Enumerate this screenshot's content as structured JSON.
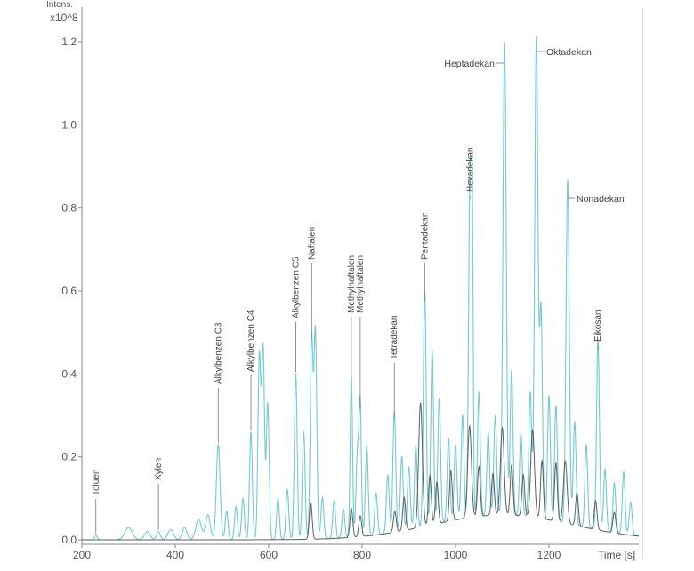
{
  "chart_data": {
    "type": "line",
    "ylabel": "Intens.",
    "yunit": "x10^8",
    "xlabel": "Time [s]",
    "xlim": [
      200,
      1392
    ],
    "ylim": [
      0,
      1.2
    ],
    "xticks": [
      "200",
      "400",
      "600",
      "800",
      "1000",
      "1200"
    ],
    "yticks": [
      "0,0",
      "0,2",
      "0,4",
      "0,6",
      "0,8",
      "1,0",
      "1,2"
    ],
    "grid": false,
    "colors": {
      "series1": "#6cc6d2",
      "series2": "#4a4f52",
      "axis": "#888888"
    },
    "series": [
      {
        "peaks_time_intensity_width": [
          [
            230,
            0.01,
            3
          ],
          [
            300,
            0.03,
            8
          ],
          [
            340,
            0.02,
            6
          ],
          [
            364,
            0.02,
            4
          ],
          [
            390,
            0.025,
            6
          ],
          [
            420,
            0.03,
            5
          ],
          [
            450,
            0.05,
            6
          ],
          [
            470,
            0.06,
            5
          ],
          [
            492,
            0.23,
            4
          ],
          [
            510,
            0.07,
            3
          ],
          [
            530,
            0.08,
            3
          ],
          [
            545,
            0.1,
            3
          ],
          [
            562,
            0.26,
            3
          ],
          [
            580,
            0.44,
            3
          ],
          [
            588,
            0.46,
            3
          ],
          [
            598,
            0.33,
            3
          ],
          [
            620,
            0.1,
            3
          ],
          [
            640,
            0.12,
            3
          ],
          [
            658,
            0.4,
            3
          ],
          [
            675,
            0.26,
            3
          ],
          [
            692,
            0.48,
            3
          ],
          [
            700,
            0.5,
            3
          ],
          [
            715,
            0.1,
            3
          ],
          [
            740,
            0.09,
            3
          ],
          [
            760,
            0.07,
            3
          ],
          [
            777,
            0.39,
            2.5
          ],
          [
            790,
            0.2,
            3
          ],
          [
            796,
            0.31,
            2.5
          ],
          [
            810,
            0.22,
            3
          ],
          [
            830,
            0.1,
            3
          ],
          [
            855,
            0.14,
            3
          ],
          [
            869,
            0.29,
            3
          ],
          [
            885,
            0.18,
            3
          ],
          [
            900,
            0.15,
            3
          ],
          [
            915,
            0.2,
            3
          ],
          [
            934,
            0.57,
            3
          ],
          [
            950,
            0.42,
            3
          ],
          [
            965,
            0.3,
            3
          ],
          [
            985,
            0.2,
            3
          ],
          [
            1000,
            0.18,
            3
          ],
          [
            1015,
            0.25,
            3
          ],
          [
            1031,
            0.83,
            3
          ],
          [
            1036,
            0.6,
            2
          ],
          [
            1050,
            0.3,
            3
          ],
          [
            1070,
            0.2,
            3
          ],
          [
            1085,
            0.24,
            3
          ],
          [
            1105,
            1.14,
            3.5
          ],
          [
            1120,
            0.35,
            3
          ],
          [
            1140,
            0.2,
            3
          ],
          [
            1160,
            0.3,
            3
          ],
          [
            1173,
            1.16,
            3.5
          ],
          [
            1183,
            0.5,
            3
          ],
          [
            1200,
            0.3,
            3
          ],
          [
            1215,
            0.28,
            3
          ],
          [
            1240,
            0.83,
            3.5
          ],
          [
            1255,
            0.25,
            3
          ],
          [
            1280,
            0.2,
            3
          ],
          [
            1305,
            0.46,
            3
          ],
          [
            1320,
            0.15,
            3
          ],
          [
            1340,
            0.12,
            3
          ],
          [
            1360,
            0.15,
            3
          ],
          [
            1375,
            0.08,
            3
          ],
          [
            1100,
            0.06,
            150
          ]
        ]
      },
      {
        "peaks_time_intensity_width": [
          [
            690,
            0.09,
            3
          ],
          [
            777,
            0.07,
            3
          ],
          [
            796,
            0.05,
            3
          ],
          [
            870,
            0.05,
            3
          ],
          [
            890,
            0.08,
            3
          ],
          [
            925,
            0.3,
            4
          ],
          [
            945,
            0.12,
            3
          ],
          [
            960,
            0.1,
            3
          ],
          [
            990,
            0.12,
            3
          ],
          [
            1030,
            0.22,
            4
          ],
          [
            1050,
            0.12,
            3
          ],
          [
            1080,
            0.1,
            3
          ],
          [
            1100,
            0.21,
            4
          ],
          [
            1120,
            0.12,
            3
          ],
          [
            1145,
            0.1,
            3
          ],
          [
            1165,
            0.21,
            4
          ],
          [
            1185,
            0.14,
            3
          ],
          [
            1215,
            0.14,
            3
          ],
          [
            1235,
            0.15,
            4
          ],
          [
            1260,
            0.08,
            3
          ],
          [
            1300,
            0.07,
            3
          ],
          [
            1340,
            0.05,
            3
          ],
          [
            1100,
            0.06,
            150
          ]
        ]
      }
    ],
    "annotations": [
      {
        "text": "Toluen",
        "time": 230,
        "intensity": 0.01
      },
      {
        "text": "Xylen",
        "time": 364,
        "intensity": 0.02
      },
      {
        "text": "Alkylbenzen C3",
        "time": 492,
        "intensity": 0.23
      },
      {
        "text": "Alkylbenzen C4",
        "time": 562,
        "intensity": 0.26
      },
      {
        "text": "Alkylbenzen C5",
        "time": 658,
        "intensity": 0.4
      },
      {
        "text": "Naftalen",
        "time": 692,
        "intensity": 0.48
      },
      {
        "text": "Methylnaftalen",
        "time": 777,
        "intensity": 0.39
      },
      {
        "text": "Methylnaftalen",
        "time": 796,
        "intensity": 0.31
      },
      {
        "text": "Tetradekan",
        "time": 869,
        "intensity": 0.29
      },
      {
        "text": "Pentadekan",
        "time": 934,
        "intensity": 0.57
      },
      {
        "text": "Hexadekan",
        "time": 1031,
        "intensity": 0.83
      },
      {
        "text": "Heptadekan",
        "time": 1105,
        "intensity": 1.14
      },
      {
        "text": "Oktadekan",
        "time": 1173,
        "intensity": 1.16
      },
      {
        "text": "Nonadekan",
        "time": 1240,
        "intensity": 0.83
      },
      {
        "text": "Eikosan",
        "time": 1305,
        "intensity": 0.46
      }
    ]
  }
}
